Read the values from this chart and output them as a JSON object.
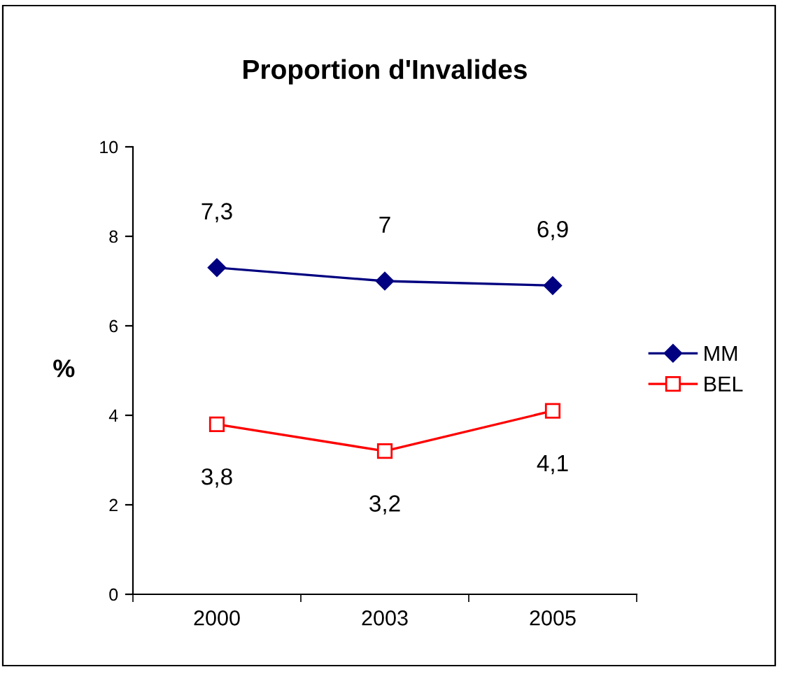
{
  "chart_data": {
    "type": "line",
    "title": "Proportion d'Invalides",
    "ylabel": "%",
    "categories": [
      "2000",
      "2003",
      "2005"
    ],
    "series": [
      {
        "name": "MM",
        "color": "#000080",
        "values": [
          7.3,
          7,
          6.9
        ],
        "marker": "diamond",
        "value_labels": [
          "7,3",
          "7",
          "6,9"
        ]
      },
      {
        "name": "BEL",
        "color": "#ff0000",
        "values": [
          3.8,
          3.2,
          4.1
        ],
        "marker": "square",
        "value_labels": [
          "3,8",
          "3,2",
          "4,1"
        ]
      }
    ],
    "ylim": [
      0,
      10
    ],
    "yticks": [
      0,
      2,
      4,
      6,
      8,
      10
    ],
    "grid": false,
    "legend": "right",
    "line_style": "solid"
  }
}
